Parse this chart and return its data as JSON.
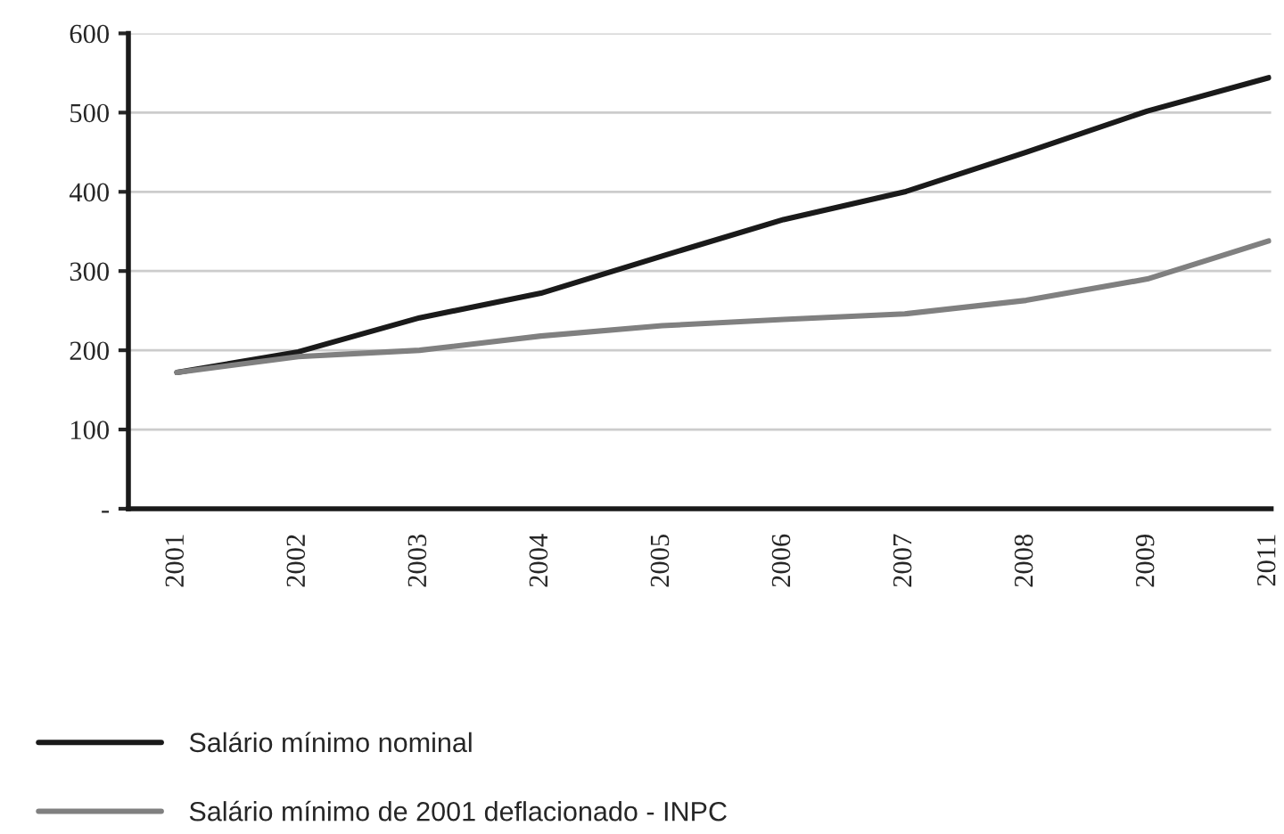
{
  "chart_data": {
    "type": "line",
    "categories": [
      "2001",
      "2002",
      "2003",
      "2004",
      "2005",
      "2006",
      "2007",
      "2008",
      "2009",
      "2011"
    ],
    "series": [
      {
        "name": "Salário mínimo nominal",
        "color": "#1a1a1a",
        "values": [
          172,
          198,
          241,
          272,
          319,
          365,
          400,
          450,
          502,
          544
        ]
      },
      {
        "name": "Salário mínimo de 2001 deflacionado - INPC",
        "color": "#808080",
        "values": [
          172,
          192,
          200,
          218,
          231,
          239,
          246,
          263,
          290,
          338
        ]
      }
    ],
    "ylim": [
      0,
      600
    ],
    "yticks": [
      {
        "value": 0,
        "label": "-"
      },
      100,
      200,
      300,
      400,
      500,
      600
    ],
    "grid": "y",
    "legend": "bottom",
    "marker": "none",
    "line_style": "solid"
  }
}
